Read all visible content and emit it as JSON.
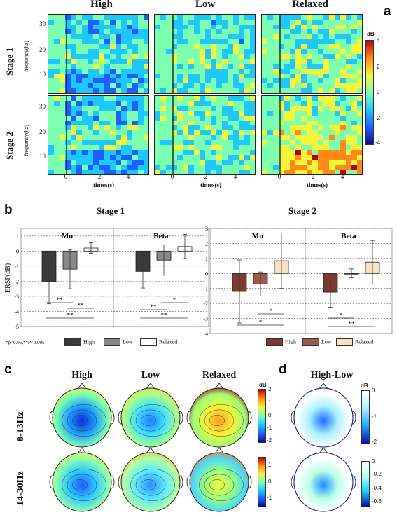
{
  "panels": {
    "a": "a",
    "b": "b",
    "c": "c",
    "d": "d"
  },
  "panel_a": {
    "columns": [
      "High",
      "Low",
      "Relaxed"
    ],
    "rows": [
      "Stage 1",
      "Stage 2"
    ],
    "ylabel": "frequency(hz)",
    "xlabel": "times(s)",
    "yticks": [
      "30",
      "20",
      "10"
    ],
    "xticks": [
      "0",
      "2",
      "4"
    ],
    "colorbar": {
      "unit": "dB",
      "ticks": [
        "4",
        "2",
        "0",
        "-2",
        "-4"
      ],
      "range": [
        -4,
        4
      ],
      "colors": [
        "#0a0a8c",
        "#1f5fff",
        "#1ec8ff",
        "#7dffb0",
        "#f4f43a",
        "#ff8a1a",
        "#c00000"
      ]
    }
  },
  "chart_data": [
    {
      "type": "bar",
      "title": "Stage 1",
      "subtitle": "Mu",
      "ylabel": "ERSP(dB)",
      "categories": [
        "High",
        "Low",
        "Relaxed"
      ],
      "values": [
        -2.05,
        -1.2,
        0.2
      ],
      "error": [
        1.45,
        1.3,
        0.35
      ],
      "ylim": [
        -5,
        1.5
      ],
      "yticks": [
        "1",
        "0",
        "-1",
        "-2",
        "-3",
        "-4",
        "-5"
      ],
      "significance": [
        "**",
        "**",
        "**"
      ],
      "colors": [
        "#3a3a3a",
        "#888888",
        "#ffffff"
      ]
    },
    {
      "type": "bar",
      "title": "Stage 1",
      "subtitle": "Beta",
      "categories": [
        "High",
        "Low",
        "Relaxed"
      ],
      "values": [
        -1.35,
        -0.6,
        0.3
      ],
      "error": [
        1.1,
        1.0,
        0.8
      ],
      "ylim": [
        -5,
        1.5
      ],
      "significance": [
        "**",
        "*",
        "**"
      ],
      "colors": [
        "#3a3a3a",
        "#888888",
        "#ffffff"
      ]
    },
    {
      "type": "bar",
      "title": "Stage 2",
      "subtitle": "Mu",
      "categories": [
        "High",
        "Low",
        "Relaxed"
      ],
      "values": [
        -1.2,
        -0.7,
        0.85
      ],
      "error": [
        2.1,
        0.8,
        1.85
      ],
      "ylim": [
        -4,
        3
      ],
      "yticks": [
        "3",
        "2",
        "1",
        "0",
        "-1",
        "-2",
        "-3",
        "-4"
      ],
      "significance": [
        "*",
        "*"
      ],
      "colors": [
        "#7b3b32",
        "#9c5a48",
        "#f5e3c0"
      ]
    },
    {
      "type": "bar",
      "title": "Stage 2",
      "subtitle": "Beta",
      "categories": [
        "High",
        "Low",
        "Relaxed"
      ],
      "values": [
        -1.25,
        0.0,
        0.75
      ],
      "error": [
        1.0,
        0.3,
        1.45
      ],
      "ylim": [
        -4,
        3
      ],
      "significance": [
        "*",
        "**"
      ],
      "colors": [
        "#7b3b32",
        "#9c5a48",
        "#f5e3c0"
      ]
    }
  ],
  "panel_b": {
    "stage1": "Stage 1",
    "stage2": "Stage 2",
    "mu": "Mu",
    "beta": "Beta",
    "ylabel": "ERSP(dB)",
    "footnote": "*p<0.05,**P<0.005",
    "legend1": [
      "High",
      "Low",
      "Relaxed"
    ],
    "legend2": [
      "High",
      "Low",
      "Relaxed"
    ]
  },
  "panel_c": {
    "columns": [
      "High",
      "Low",
      "Relaxed"
    ],
    "rows": [
      "8-13Hz",
      "14-30Hz"
    ],
    "cbar1": {
      "unit": "dB",
      "ticks": [
        "2",
        "1",
        "0",
        "-1",
        "-2"
      ]
    },
    "cbar2": {
      "ticks": [
        "1",
        "0",
        "-1"
      ]
    }
  },
  "panel_d": {
    "title": "High-Low",
    "cbar1": {
      "unit": "dB",
      "ticks": [
        "0",
        "-1",
        "-2"
      ]
    },
    "cbar2": {
      "ticks": [
        "0",
        "-0.2",
        "-0.4",
        "-0.6"
      ]
    }
  }
}
